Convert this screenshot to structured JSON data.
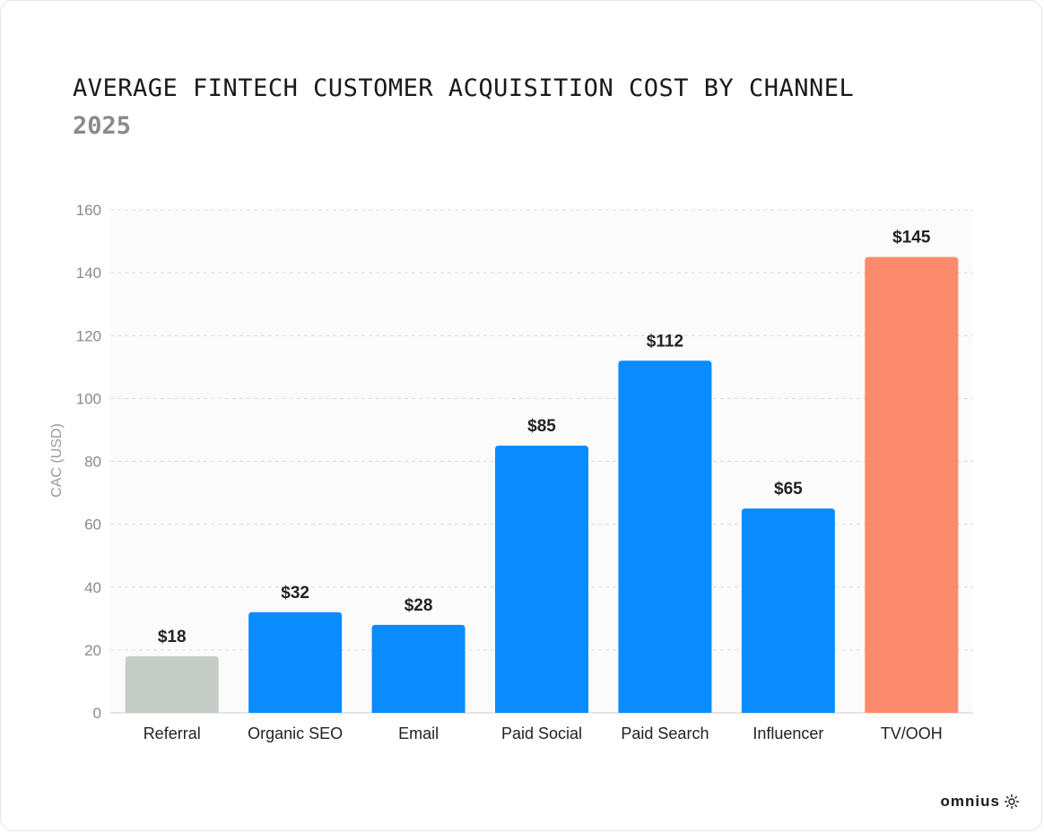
{
  "header": {
    "title": "AVERAGE FINTECH CUSTOMER ACQUISITION COST BY CHANNEL",
    "subtitle": "2025"
  },
  "brand": {
    "name": "omnius"
  },
  "colors": {
    "highlight_low": "#c5ccc6",
    "default_bar": "#0a8cff",
    "highlight_high": "#fd8a6c",
    "grid": "#dddddd",
    "plot_bg": "#fbfbfb"
  },
  "chart_data": {
    "type": "bar",
    "title": "AVERAGE FINTECH CUSTOMER ACQUISITION COST BY CHANNEL",
    "subtitle": "2025",
    "xlabel": "",
    "ylabel": "CAC (USD)",
    "ylim": [
      0,
      160
    ],
    "yticks": [
      0,
      20,
      40,
      60,
      80,
      100,
      120,
      140,
      160
    ],
    "grid": true,
    "categories": [
      "Referral",
      "Organic SEO",
      "Email",
      "Paid Social",
      "Paid Search",
      "Influencer",
      "TV/OOH"
    ],
    "values": [
      18,
      32,
      28,
      85,
      112,
      65,
      145
    ],
    "data_labels": [
      "$18",
      "$32",
      "$28",
      "$85",
      "$112",
      "$65",
      "$145"
    ],
    "bar_colors": [
      "#c5ccc6",
      "#0a8cff",
      "#0a8cff",
      "#0a8cff",
      "#0a8cff",
      "#0a8cff",
      "#fd8a6c"
    ]
  }
}
